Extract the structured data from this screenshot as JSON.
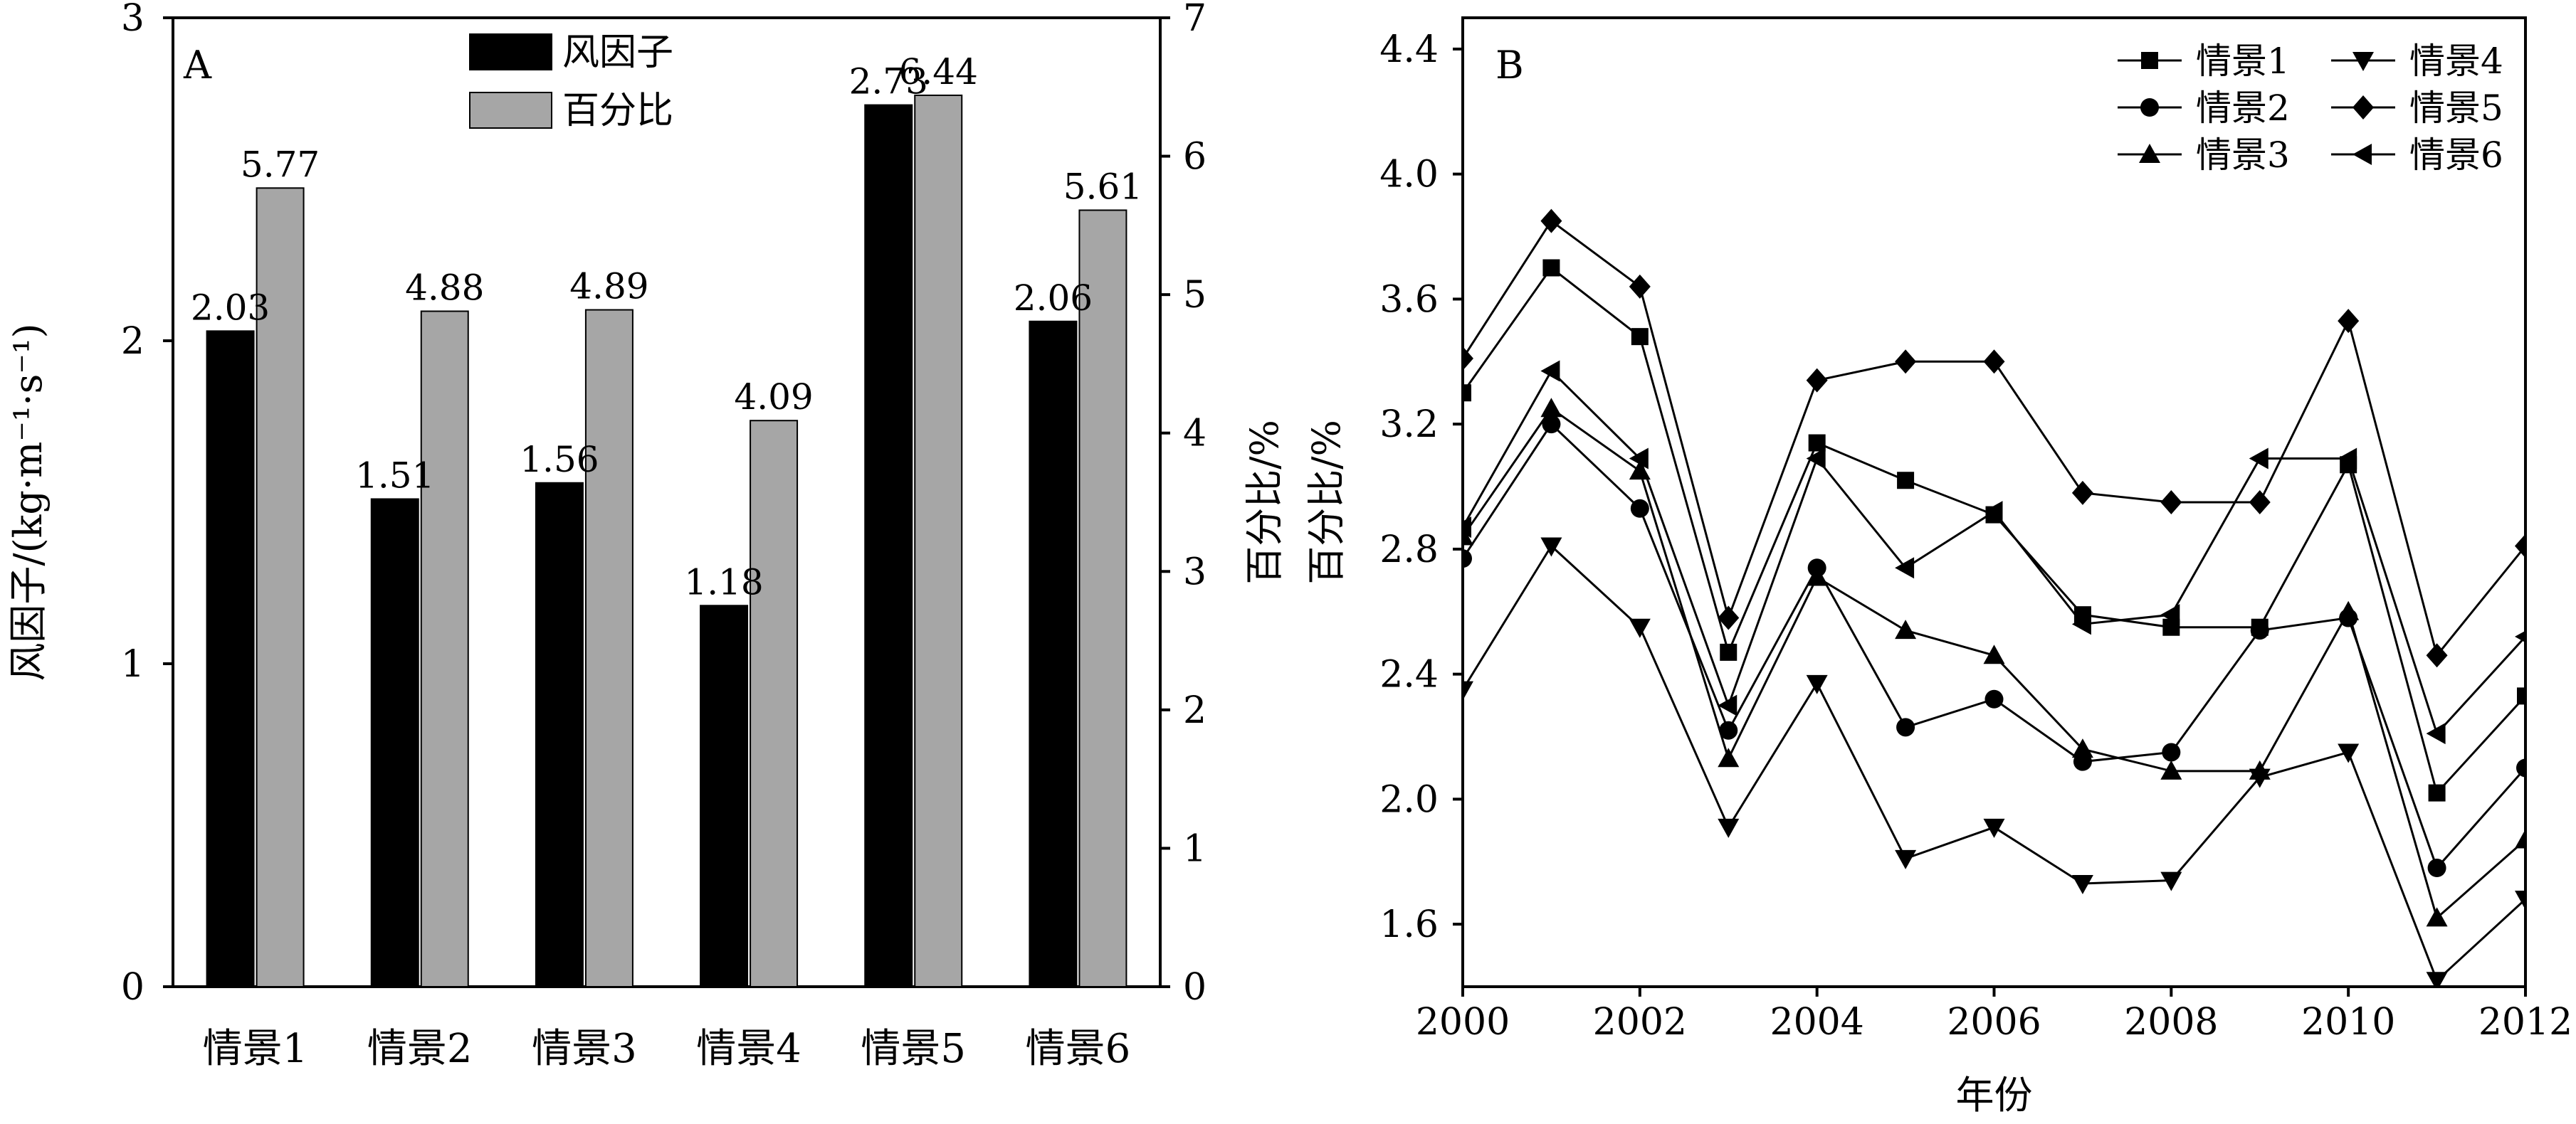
{
  "chart_data": [
    {
      "type": "bar",
      "panel_label": "A",
      "categories": [
        "情景1",
        "情景2",
        "情景3",
        "情景4",
        "情景5",
        "情景6"
      ],
      "series": [
        {
          "name": "风因子",
          "values": [
            2.03,
            1.51,
            1.56,
            1.18,
            2.73,
            2.06
          ],
          "axis": "left",
          "color": "#000000"
        },
        {
          "name": "百分比",
          "values": [
            5.77,
            4.88,
            4.89,
            4.09,
            6.44,
            5.61
          ],
          "axis": "right",
          "color": "#a6a6a6"
        }
      ],
      "ylabel": "风因子/(kg·m⁻¹·s⁻¹)",
      "y2label": "百分比/%",
      "ylim": [
        0,
        3
      ],
      "y2lim": [
        0,
        7
      ],
      "yticks": [
        "0",
        "1",
        "2",
        "3"
      ],
      "y2ticks": [
        "0",
        "1",
        "2",
        "3",
        "4",
        "5",
        "6",
        "7"
      ],
      "legend_position": "top-center",
      "grid": false
    },
    {
      "type": "line",
      "panel_label": "B",
      "x": [
        2000,
        2001,
        2002,
        2003,
        2004,
        2005,
        2006,
        2007,
        2008,
        2009,
        2010,
        2011,
        2012
      ],
      "series": [
        {
          "name": "情景1",
          "marker": "square",
          "values": [
            3.3,
            3.7,
            3.48,
            2.47,
            3.14,
            3.02,
            2.91,
            2.59,
            2.55,
            2.55,
            3.07,
            2.02,
            2.33
          ]
        },
        {
          "name": "情景2",
          "marker": "circle",
          "values": [
            2.77,
            3.2,
            2.93,
            2.22,
            2.74,
            2.23,
            2.32,
            2.12,
            2.15,
            2.54,
            2.58,
            1.78,
            2.1
          ]
        },
        {
          "name": "情景3",
          "marker": "triangle-up",
          "values": [
            2.84,
            3.25,
            3.05,
            2.13,
            2.71,
            2.54,
            2.46,
            2.16,
            2.09,
            2.09,
            2.6,
            1.62,
            1.87
          ]
        },
        {
          "name": "情景4",
          "marker": "triangle-down",
          "values": [
            2.35,
            2.81,
            2.55,
            1.91,
            2.37,
            1.81,
            1.91,
            1.73,
            1.74,
            2.07,
            2.15,
            1.42,
            1.68
          ]
        },
        {
          "name": "情景5",
          "marker": "diamond",
          "values": [
            3.41,
            3.85,
            3.64,
            2.58,
            3.34,
            3.4,
            3.4,
            2.98,
            2.95,
            2.95,
            3.53,
            2.46,
            2.81
          ]
        },
        {
          "name": "情景6",
          "marker": "triangle-left",
          "values": [
            2.87,
            3.37,
            3.09,
            2.3,
            3.09,
            2.74,
            2.92,
            2.56,
            2.59,
            3.09,
            3.09,
            2.21,
            2.52
          ]
        }
      ],
      "xlabel": "年份",
      "ylabel": "百分比/%",
      "xlim": [
        2000,
        2012
      ],
      "ylim": [
        1.4,
        4.5
      ],
      "xticks": [
        "2000",
        "2002",
        "2004",
        "2006",
        "2008",
        "2010",
        "2012"
      ],
      "yticks": [
        "1.6",
        "2.0",
        "2.4",
        "2.8",
        "3.2",
        "3.6",
        "4.0",
        "4.4"
      ],
      "legend_position": "top-right",
      "grid": false
    }
  ]
}
